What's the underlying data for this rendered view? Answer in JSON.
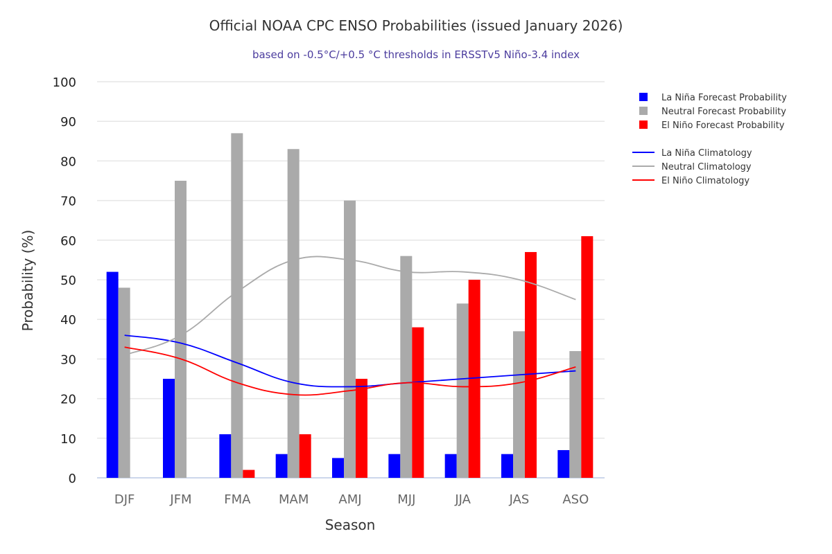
{
  "chart_data": {
    "type": "bar",
    "title": "Official NOAA CPC ENSO Probabilities (issued January 2026)",
    "subtitle": "based on -0.5°C/+0.5 °C thresholds in ERSSTv5 Niño-3.4 index",
    "xlabel": "Season",
    "ylabel": "Probability (%)",
    "ylim": [
      0,
      100
    ],
    "yticks": [
      0,
      10,
      20,
      30,
      40,
      50,
      60,
      70,
      80,
      90,
      100
    ],
    "grid": true,
    "legend_position": "right",
    "categories": [
      "DJF",
      "JFM",
      "FMA",
      "MAM",
      "AMJ",
      "MJJ",
      "JJA",
      "JAS",
      "ASO"
    ],
    "series": [
      {
        "name": "La Niña Forecast Probability",
        "kind": "bar",
        "color": "#0000ff",
        "values": [
          52,
          25,
          11,
          6,
          5,
          6,
          6,
          6,
          7
        ]
      },
      {
        "name": "Neutral Forecast Probability",
        "kind": "bar",
        "color": "#aaaaaa",
        "values": [
          48,
          75,
          87,
          83,
          70,
          56,
          44,
          37,
          32
        ]
      },
      {
        "name": "El Niño Forecast Probability",
        "kind": "bar",
        "color": "#ff0000",
        "values": [
          0,
          0,
          2,
          11,
          25,
          38,
          50,
          57,
          61
        ]
      },
      {
        "name": "La Niña Climatology",
        "kind": "line",
        "color": "#0000ff",
        "values": [
          36,
          34,
          29,
          24,
          23,
          24,
          25,
          26,
          27
        ]
      },
      {
        "name": "Neutral Climatology",
        "kind": "line",
        "color": "#aaaaaa",
        "values": [
          31,
          36,
          47,
          55,
          55,
          52,
          52,
          50,
          45
        ]
      },
      {
        "name": "El Niño Climatology",
        "kind": "line",
        "color": "#ff0000",
        "values": [
          33,
          30,
          24,
          21,
          22,
          24,
          23,
          24,
          28
        ]
      }
    ]
  }
}
